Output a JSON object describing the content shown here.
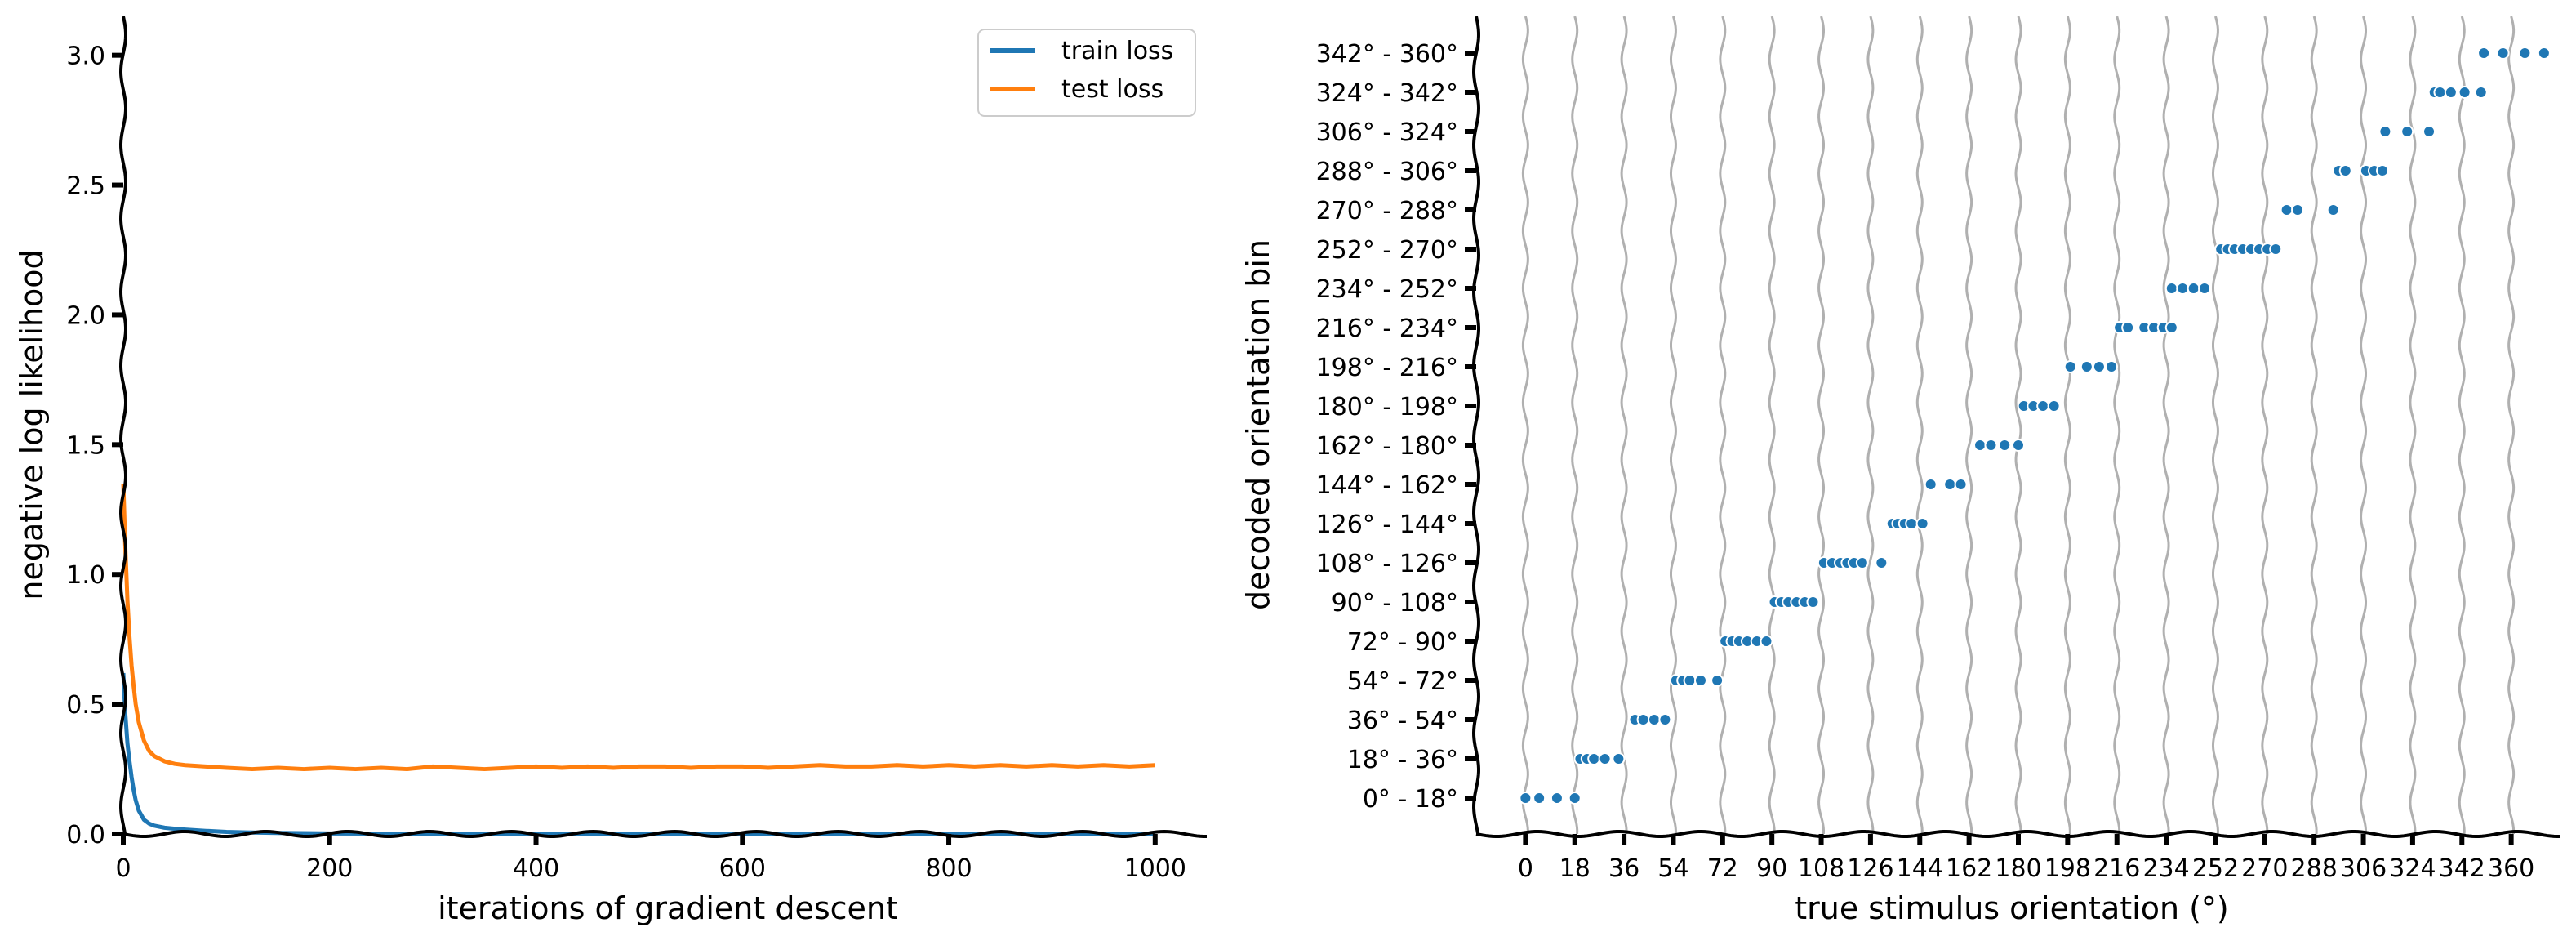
{
  "chart_data": [
    {
      "type": "line",
      "title": "",
      "xlabel": "iterations of gradient descent",
      "ylabel": "negative log likelihood",
      "xlim": [
        0,
        1050
      ],
      "ylim": [
        0,
        3.15
      ],
      "xticks": [
        0,
        200,
        400,
        600,
        800,
        1000
      ],
      "yticks": [
        0.0,
        0.5,
        1.0,
        1.5,
        2.0,
        2.5,
        3.0
      ],
      "xtick_labels": [
        "0",
        "200",
        "400",
        "600",
        "800",
        "1000"
      ],
      "ytick_labels": [
        "0.0",
        "0.5",
        "1.0",
        "1.5",
        "2.0",
        "2.5",
        "3.0"
      ],
      "grid": false,
      "legend_position": "top-right",
      "legend": [
        "train loss",
        "test loss"
      ],
      "series": [
        {
          "name": "train loss",
          "color": "#1f77b4",
          "x": [
            0,
            2,
            4,
            6,
            8,
            10,
            12,
            15,
            20,
            25,
            30,
            40,
            50,
            60,
            80,
            100,
            120,
            150,
            200,
            300,
            400,
            500,
            600,
            700,
            800,
            900,
            1000
          ],
          "y": [
            0.62,
            0.46,
            0.35,
            0.28,
            0.22,
            0.17,
            0.13,
            0.09,
            0.055,
            0.04,
            0.032,
            0.024,
            0.02,
            0.017,
            0.012,
            0.008,
            0.006,
            0.004,
            0.002,
            0.001,
            0.001,
            0.0005,
            0.0005,
            0.0005,
            0.0005,
            0.0005,
            0.0005
          ]
        },
        {
          "name": "test loss",
          "color": "#ff7f0e",
          "x": [
            0,
            2,
            4,
            6,
            8,
            10,
            12,
            15,
            20,
            25,
            30,
            40,
            50,
            60,
            80,
            100,
            125,
            150,
            175,
            200,
            225,
            250,
            275,
            300,
            325,
            350,
            375,
            400,
            425,
            450,
            475,
            500,
            525,
            550,
            575,
            600,
            625,
            650,
            675,
            700,
            725,
            750,
            775,
            800,
            825,
            850,
            875,
            900,
            925,
            950,
            975,
            1000
          ],
          "y": [
            1.35,
            1.1,
            0.9,
            0.76,
            0.65,
            0.57,
            0.5,
            0.43,
            0.36,
            0.32,
            0.3,
            0.28,
            0.27,
            0.265,
            0.26,
            0.255,
            0.25,
            0.255,
            0.25,
            0.255,
            0.25,
            0.255,
            0.25,
            0.26,
            0.255,
            0.25,
            0.255,
            0.26,
            0.255,
            0.26,
            0.255,
            0.26,
            0.26,
            0.255,
            0.26,
            0.26,
            0.255,
            0.26,
            0.265,
            0.26,
            0.26,
            0.265,
            0.26,
            0.265,
            0.26,
            0.265,
            0.26,
            0.265,
            0.26,
            0.265,
            0.26,
            0.265
          ]
        }
      ]
    },
    {
      "type": "scatter",
      "title": "",
      "xlabel": "true stimulus orientation (°)",
      "ylabel": "decoded orientation bin",
      "xlim": [
        -18,
        378
      ],
      "xticks": [
        0,
        18,
        36,
        54,
        72,
        90,
        108,
        126,
        144,
        162,
        180,
        198,
        216,
        234,
        252,
        270,
        288,
        306,
        324,
        342,
        360
      ],
      "xtick_labels": [
        "0",
        "18",
        "36",
        "54",
        "72",
        "90",
        "108",
        "126",
        "144",
        "162",
        "180",
        "198",
        "216",
        "234",
        "252",
        "270",
        "288",
        "306",
        "324",
        "342",
        "360"
      ],
      "ytick_labels": [
        "0° -  18°",
        "18° -  36°",
        "36° -  54°",
        "54° -  72°",
        "72° -  90°",
        "90° -  108°",
        "108° -  126°",
        "126° -  144°",
        "144° -  162°",
        "162° -  180°",
        "180° -  198°",
        "198° -  216°",
        "216° -  234°",
        "234° -  252°",
        "252° -  270°",
        "270° -  288°",
        "288° -  306°",
        "306° -  324°",
        "324° -  342°",
        "342° -  360°"
      ],
      "vertical_lines_at": [
        0,
        18,
        36,
        54,
        72,
        90,
        108,
        126,
        144,
        162,
        180,
        198,
        216,
        234,
        252,
        270,
        288,
        306,
        324,
        342,
        360
      ],
      "grid": false,
      "marker_color": "#1f77b4",
      "points": [
        {
          "x": 0,
          "bin": 0
        },
        {
          "x": 5,
          "bin": 0
        },
        {
          "x": 11.5,
          "bin": 0
        },
        {
          "x": 18,
          "bin": 0
        },
        {
          "x": 20,
          "bin": 1
        },
        {
          "x": 22.5,
          "bin": 1
        },
        {
          "x": 25,
          "bin": 1
        },
        {
          "x": 29,
          "bin": 1
        },
        {
          "x": 34,
          "bin": 1
        },
        {
          "x": 40,
          "bin": 2
        },
        {
          "x": 43,
          "bin": 2
        },
        {
          "x": 47,
          "bin": 2
        },
        {
          "x": 51,
          "bin": 2
        },
        {
          "x": 55,
          "bin": 3
        },
        {
          "x": 57.5,
          "bin": 3
        },
        {
          "x": 60,
          "bin": 3
        },
        {
          "x": 64,
          "bin": 3
        },
        {
          "x": 70,
          "bin": 3
        },
        {
          "x": 73,
          "bin": 4
        },
        {
          "x": 75.5,
          "bin": 4
        },
        {
          "x": 78,
          "bin": 4
        },
        {
          "x": 81,
          "bin": 4
        },
        {
          "x": 84.5,
          "bin": 4
        },
        {
          "x": 88,
          "bin": 4
        },
        {
          "x": 91,
          "bin": 5
        },
        {
          "x": 93.5,
          "bin": 5
        },
        {
          "x": 96,
          "bin": 5
        },
        {
          "x": 99,
          "bin": 5
        },
        {
          "x": 102,
          "bin": 5
        },
        {
          "x": 105,
          "bin": 5
        },
        {
          "x": 109,
          "bin": 6
        },
        {
          "x": 112,
          "bin": 6
        },
        {
          "x": 115,
          "bin": 6
        },
        {
          "x": 117.5,
          "bin": 6
        },
        {
          "x": 120,
          "bin": 6
        },
        {
          "x": 123,
          "bin": 6
        },
        {
          "x": 130,
          "bin": 6
        },
        {
          "x": 134,
          "bin": 7
        },
        {
          "x": 136,
          "bin": 7
        },
        {
          "x": 138.5,
          "bin": 7
        },
        {
          "x": 141,
          "bin": 7
        },
        {
          "x": 145,
          "bin": 7
        },
        {
          "x": 148,
          "bin": 8
        },
        {
          "x": 155,
          "bin": 8
        },
        {
          "x": 159,
          "bin": 8
        },
        {
          "x": 166,
          "bin": 9
        },
        {
          "x": 170,
          "bin": 9
        },
        {
          "x": 175,
          "bin": 9
        },
        {
          "x": 180,
          "bin": 9
        },
        {
          "x": 182,
          "bin": 10
        },
        {
          "x": 185.5,
          "bin": 10
        },
        {
          "x": 189,
          "bin": 10
        },
        {
          "x": 193,
          "bin": 10
        },
        {
          "x": 199,
          "bin": 11
        },
        {
          "x": 205,
          "bin": 11
        },
        {
          "x": 209.5,
          "bin": 11
        },
        {
          "x": 214,
          "bin": 11
        },
        {
          "x": 217,
          "bin": 12
        },
        {
          "x": 220,
          "bin": 12
        },
        {
          "x": 226,
          "bin": 12
        },
        {
          "x": 229.5,
          "bin": 12
        },
        {
          "x": 233,
          "bin": 12
        },
        {
          "x": 236,
          "bin": 12
        },
        {
          "x": 236,
          "bin": 13
        },
        {
          "x": 240,
          "bin": 13
        },
        {
          "x": 244,
          "bin": 13
        },
        {
          "x": 248,
          "bin": 13
        },
        {
          "x": 254,
          "bin": 14
        },
        {
          "x": 256.5,
          "bin": 14
        },
        {
          "x": 259,
          "bin": 14
        },
        {
          "x": 262,
          "bin": 14
        },
        {
          "x": 265,
          "bin": 14
        },
        {
          "x": 268,
          "bin": 14
        },
        {
          "x": 271,
          "bin": 14
        },
        {
          "x": 274,
          "bin": 14
        },
        {
          "x": 278,
          "bin": 15
        },
        {
          "x": 282,
          "bin": 15
        },
        {
          "x": 295,
          "bin": 15
        },
        {
          "x": 297,
          "bin": 16
        },
        {
          "x": 299.5,
          "bin": 16
        },
        {
          "x": 307,
          "bin": 16
        },
        {
          "x": 310,
          "bin": 16
        },
        {
          "x": 313,
          "bin": 16
        },
        {
          "x": 314,
          "bin": 17
        },
        {
          "x": 322,
          "bin": 17
        },
        {
          "x": 330,
          "bin": 17
        },
        {
          "x": 332,
          "bin": 18
        },
        {
          "x": 334,
          "bin": 18
        },
        {
          "x": 338,
          "bin": 18
        },
        {
          "x": 343,
          "bin": 18
        },
        {
          "x": 349,
          "bin": 18
        },
        {
          "x": 350,
          "bin": 19
        },
        {
          "x": 357,
          "bin": 19
        },
        {
          "x": 365,
          "bin": 19
        },
        {
          "x": 372,
          "bin": 19
        }
      ]
    }
  ]
}
